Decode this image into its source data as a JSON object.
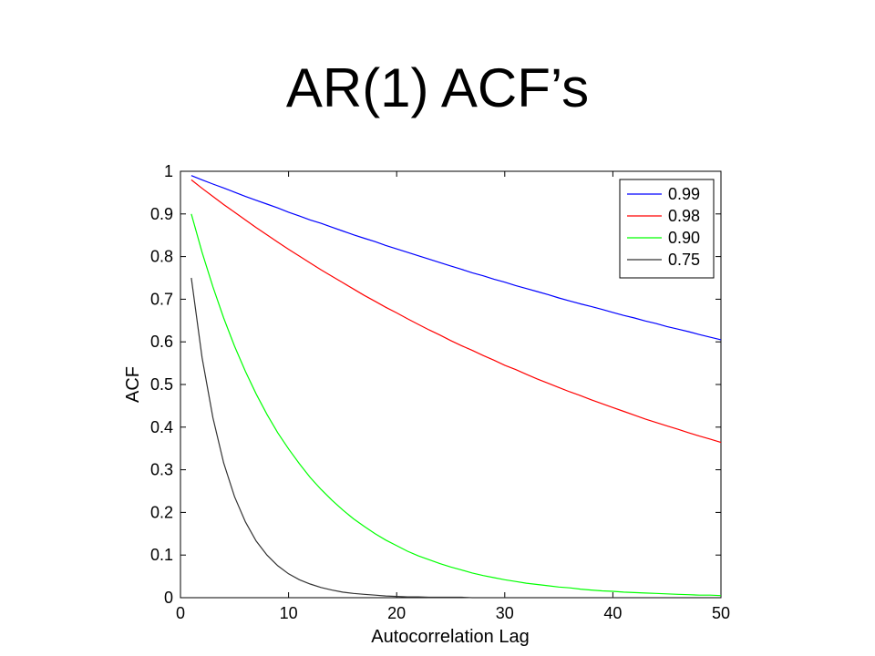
{
  "title": "AR(1) ACF’s",
  "chart_data": {
    "type": "line",
    "xlabel": "Autocorrelation Lag",
    "ylabel": "ACF",
    "xlim": [
      0,
      50
    ],
    "ylim": [
      0,
      1
    ],
    "xticks": [
      0,
      10,
      20,
      30,
      40,
      50
    ],
    "yticks": [
      0,
      0.1,
      0.2,
      0.3,
      0.4,
      0.5,
      0.6,
      0.7,
      0.8,
      0.9,
      1
    ],
    "grid": false,
    "legend_position": "top-right",
    "x": [
      1,
      2,
      3,
      4,
      5,
      6,
      7,
      8,
      9,
      10,
      11,
      12,
      13,
      14,
      15,
      16,
      17,
      18,
      19,
      20,
      21,
      22,
      23,
      24,
      25,
      26,
      27,
      28,
      29,
      30,
      31,
      32,
      33,
      34,
      35,
      36,
      37,
      38,
      39,
      40,
      41,
      42,
      43,
      44,
      45,
      46,
      47,
      48,
      49,
      50
    ],
    "series": [
      {
        "name": "0.99",
        "color": "#0000ff",
        "values": [
          0.99,
          0.98,
          0.97,
          0.961,
          0.951,
          0.941,
          0.932,
          0.923,
          0.914,
          0.904,
          0.895,
          0.886,
          0.878,
          0.869,
          0.86,
          0.851,
          0.843,
          0.835,
          0.826,
          0.818,
          0.81,
          0.802,
          0.794,
          0.786,
          0.778,
          0.77,
          0.762,
          0.755,
          0.747,
          0.74,
          0.732,
          0.725,
          0.718,
          0.711,
          0.703,
          0.696,
          0.689,
          0.683,
          0.676,
          0.669,
          0.662,
          0.656,
          0.649,
          0.643,
          0.636,
          0.63,
          0.624,
          0.617,
          0.611,
          0.605
        ]
      },
      {
        "name": "0.98",
        "color": "#ff0000",
        "values": [
          0.98,
          0.96,
          0.941,
          0.922,
          0.904,
          0.886,
          0.868,
          0.851,
          0.834,
          0.817,
          0.801,
          0.785,
          0.769,
          0.754,
          0.739,
          0.724,
          0.709,
          0.695,
          0.681,
          0.668,
          0.654,
          0.641,
          0.628,
          0.616,
          0.603,
          0.591,
          0.58,
          0.568,
          0.557,
          0.545,
          0.535,
          0.524,
          0.513,
          0.503,
          0.493,
          0.483,
          0.474,
          0.464,
          0.455,
          0.446,
          0.437,
          0.428,
          0.419,
          0.411,
          0.403,
          0.395,
          0.387,
          0.379,
          0.372,
          0.364
        ]
      },
      {
        "name": "0.90",
        "color": "#00ff00",
        "values": [
          0.9,
          0.81,
          0.729,
          0.656,
          0.59,
          0.531,
          0.478,
          0.43,
          0.387,
          0.349,
          0.314,
          0.282,
          0.254,
          0.229,
          0.206,
          0.185,
          0.167,
          0.15,
          0.135,
          0.122,
          0.109,
          0.098,
          0.089,
          0.08,
          0.072,
          0.065,
          0.058,
          0.052,
          0.047,
          0.042,
          0.038,
          0.034,
          0.031,
          0.028,
          0.025,
          0.023,
          0.02,
          0.018,
          0.016,
          0.015,
          0.013,
          0.012,
          0.011,
          0.01,
          0.009,
          0.008,
          0.007,
          0.006,
          0.006,
          0.005
        ]
      },
      {
        "name": "0.75",
        "color": "#333333",
        "values": [
          0.75,
          0.563,
          0.422,
          0.316,
          0.237,
          0.178,
          0.133,
          0.1,
          0.075,
          0.056,
          0.042,
          0.032,
          0.024,
          0.018,
          0.013,
          0.01,
          0.008,
          0.006,
          0.004,
          0.003,
          0.002,
          0.002,
          0.001,
          0.001,
          0.001,
          0.001,
          0.0,
          0.0,
          0.0,
          0.0,
          0.0,
          0.0,
          0.0,
          0.0,
          0.0,
          0.0,
          0.0,
          0.0,
          0.0,
          0.0,
          0.0,
          0.0,
          0.0,
          0.0,
          0.0,
          0.0,
          0.0,
          0.0,
          0.0,
          0.0
        ]
      }
    ]
  }
}
